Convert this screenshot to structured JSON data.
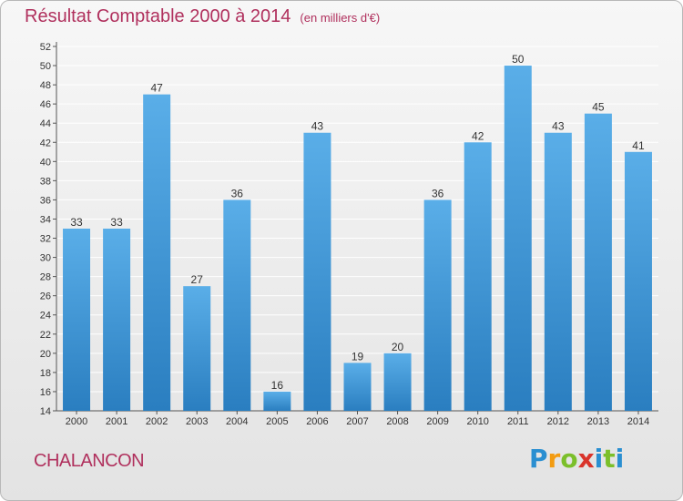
{
  "title": {
    "main": "Résultat Comptable 2000 à 2014",
    "unit": "(en milliers d'€)"
  },
  "commune": "CHALANCON",
  "logo": {
    "text": "Proxiti",
    "letters": [
      "P",
      "r",
      "o",
      "x",
      "i",
      "t",
      "i"
    ],
    "colors": [
      "#2a8fd1",
      "#f39c12",
      "#7bbf2a",
      "#d9342b",
      "#2a8fd1",
      "#7bbf2a",
      "#2a8fd1"
    ]
  },
  "colors": {
    "bar_top": "#5aaee8",
    "bar_bottom": "#2a7ec0",
    "title": "#b0305d",
    "grid": "#ffffff"
  },
  "chart_data": {
    "type": "bar",
    "categories": [
      "2000",
      "2001",
      "2002",
      "2003",
      "2004",
      "2005",
      "2006",
      "2007",
      "2008",
      "2009",
      "2010",
      "2011",
      "2012",
      "2013",
      "2014"
    ],
    "values": [
      33,
      33,
      47,
      27,
      36,
      16,
      43,
      19,
      20,
      36,
      42,
      50,
      43,
      45,
      41
    ],
    "ylim": [
      14,
      52
    ],
    "yticks": [
      14,
      16,
      18,
      20,
      22,
      24,
      26,
      28,
      30,
      32,
      34,
      36,
      38,
      40,
      42,
      44,
      46,
      48,
      50,
      52
    ],
    "grid": true,
    "title": "Résultat Comptable 2000 à 2014",
    "xlabel": "",
    "ylabel": ""
  }
}
